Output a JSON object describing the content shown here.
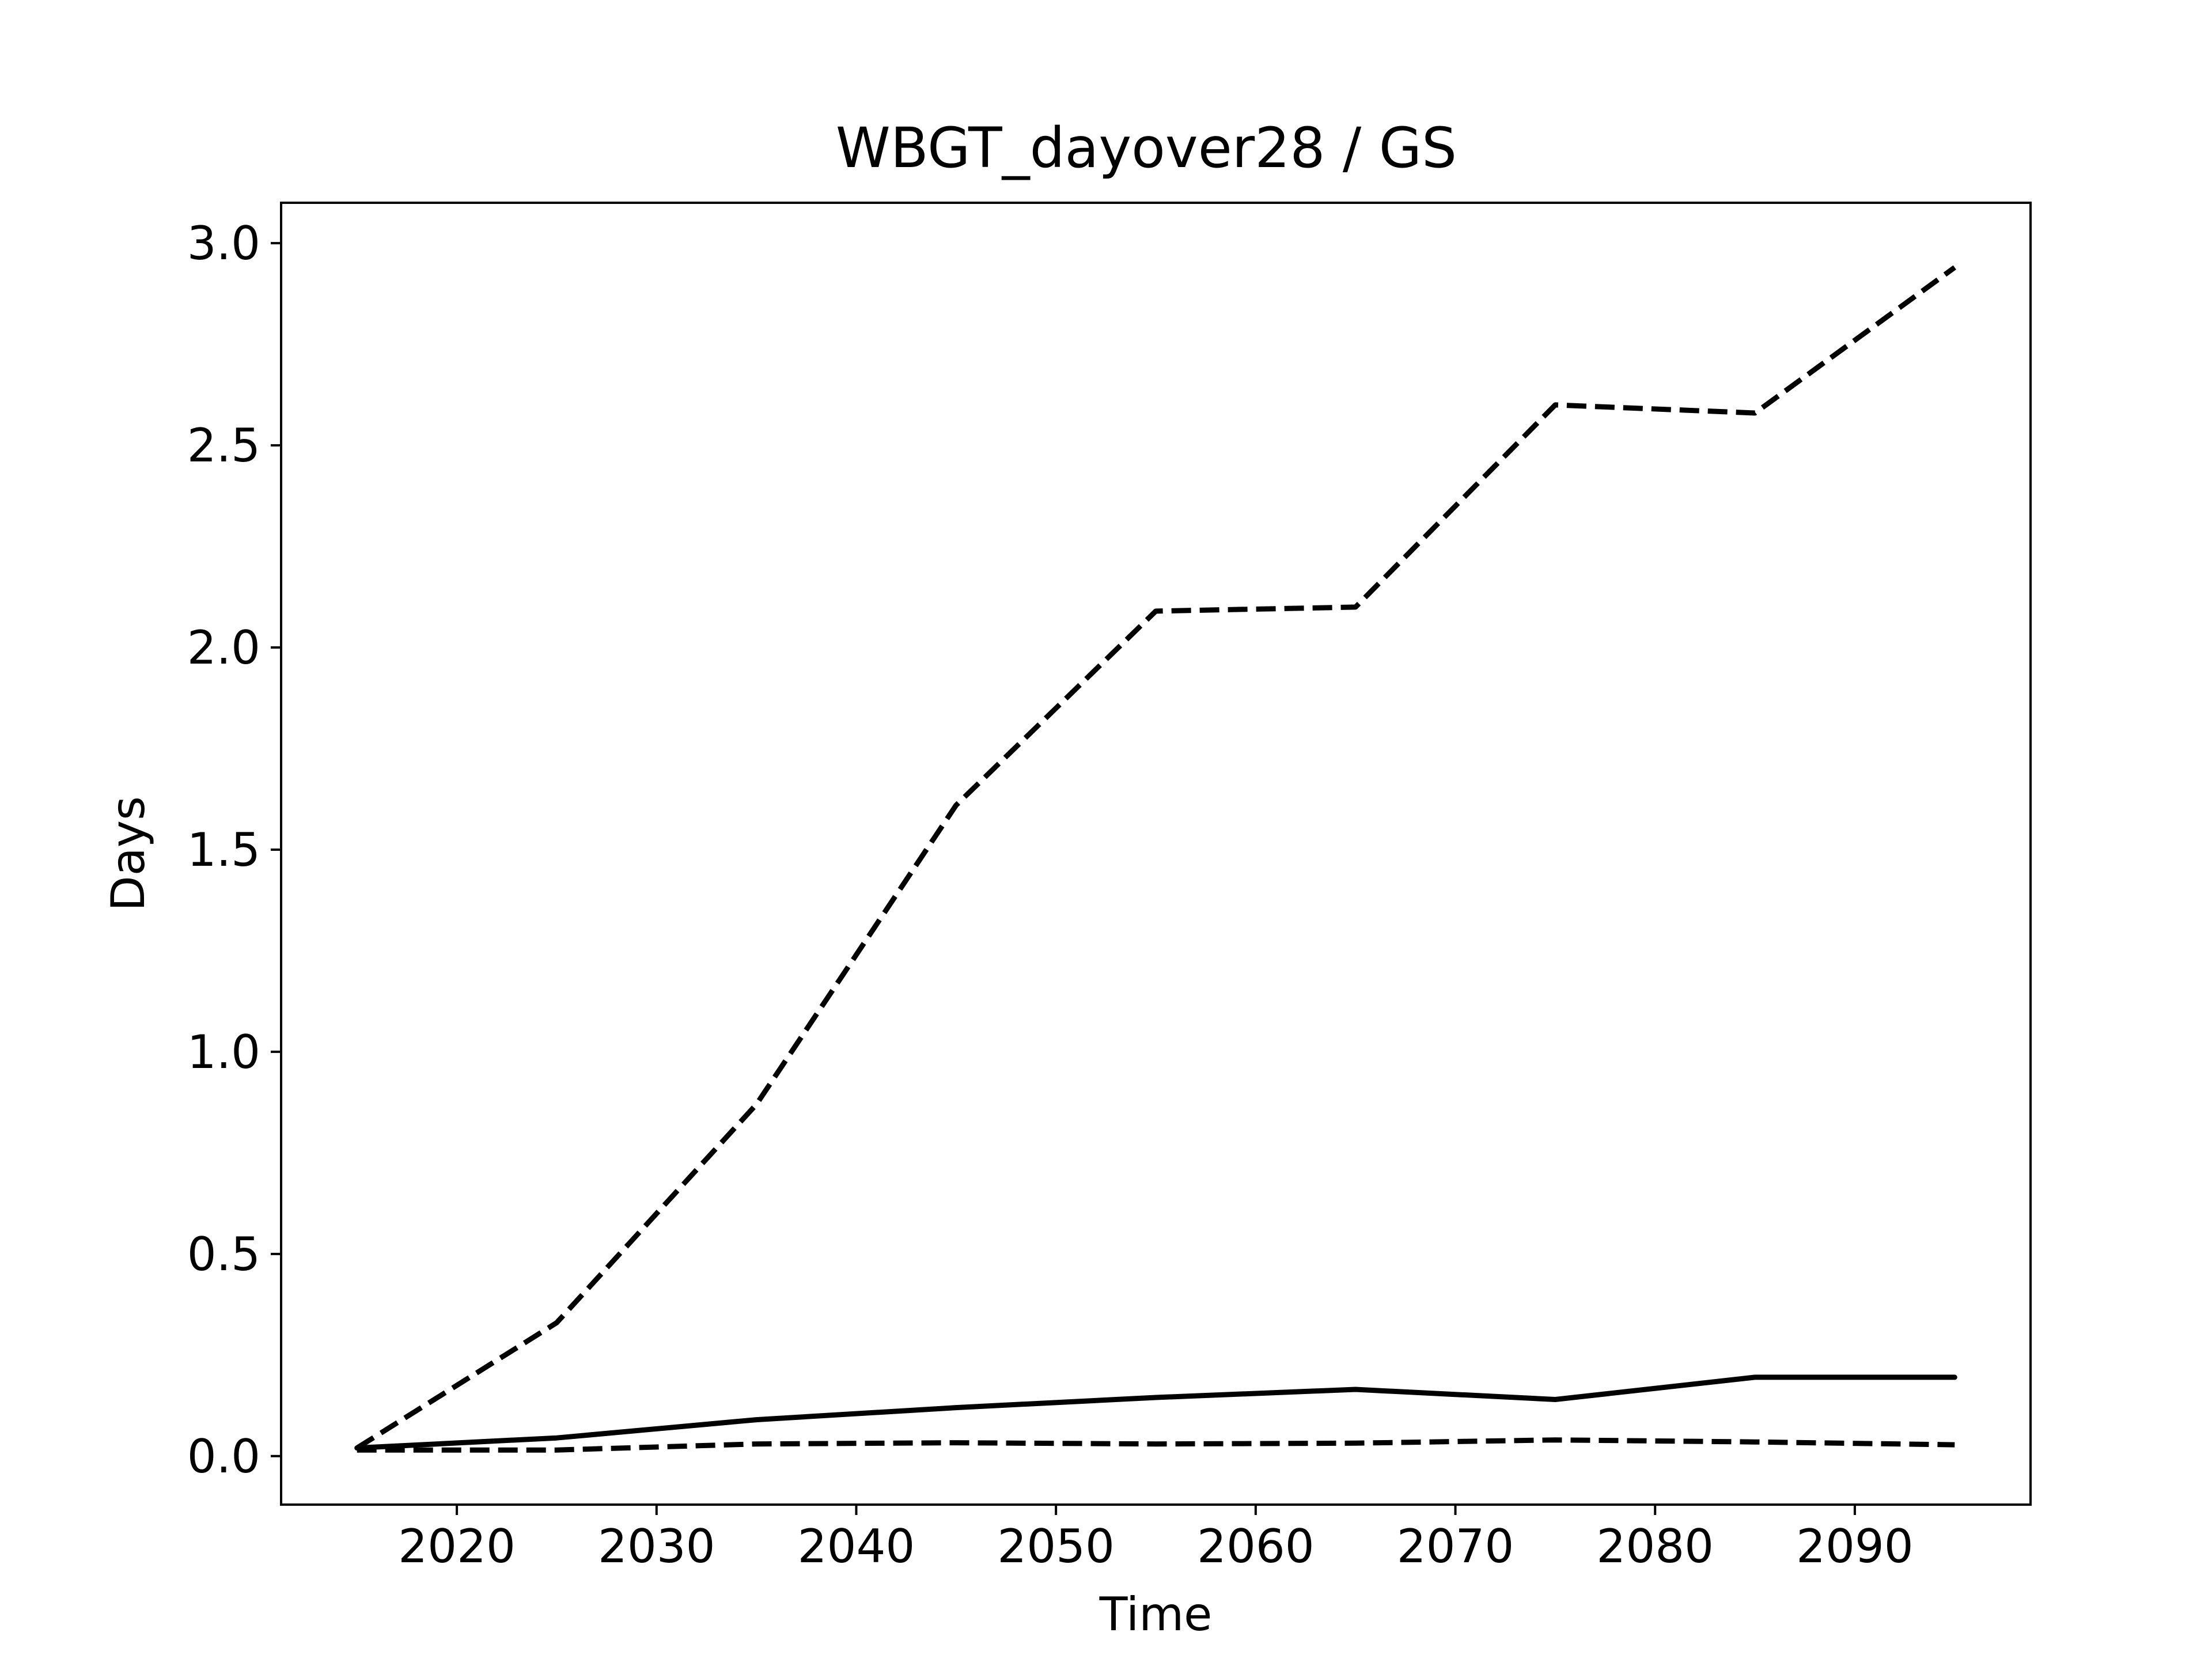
{
  "chart_data": {
    "type": "line",
    "title": "WBGT_dayover28 / GS",
    "xlabel": "Time",
    "ylabel": "Days",
    "xlim": [
      2011.2,
      2098.8
    ],
    "ylim": [
      -0.12,
      3.1
    ],
    "xticks": [
      2020,
      2030,
      2040,
      2050,
      2060,
      2070,
      2080,
      2090
    ],
    "yticks": [
      0.0,
      0.5,
      1.0,
      1.5,
      2.0,
      2.5,
      3.0
    ],
    "ytick_labels": [
      "0.0",
      "0.5",
      "1.0",
      "1.5",
      "2.0",
      "2.5",
      "3.0"
    ],
    "grid": false,
    "x": [
      2015,
      2025,
      2035,
      2045,
      2055,
      2065,
      2075,
      2085,
      2095
    ],
    "series": [
      {
        "style": "dashed",
        "color": "#000000",
        "values": [
          0.02,
          0.33,
          0.87,
          1.61,
          2.09,
          2.1,
          2.6,
          2.58,
          2.94
        ]
      },
      {
        "style": "solid",
        "color": "#000000",
        "values": [
          0.02,
          0.045,
          0.09,
          0.12,
          0.145,
          0.165,
          0.14,
          0.195,
          0.195
        ]
      },
      {
        "style": "dashed",
        "color": "#000000",
        "values": [
          0.015,
          0.015,
          0.03,
          0.033,
          0.03,
          0.032,
          0.04,
          0.035,
          0.028
        ]
      }
    ]
  }
}
